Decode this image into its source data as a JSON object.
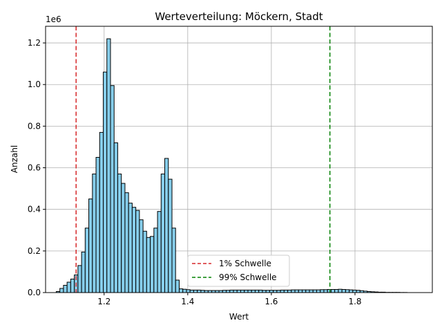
{
  "chart_data": {
    "type": "bar",
    "title": "Werteverteilung: Möckern, Stadt",
    "xlabel": "Wert",
    "ylabel": "Anzahl",
    "y_offset_label": "1e6",
    "xlim": [
      1.06,
      1.985
    ],
    "ylim": [
      0,
      1.28
    ],
    "x_ticks": [
      1.2,
      1.4,
      1.6,
      1.8
    ],
    "x_tick_labels": [
      "1.2",
      "1.4",
      "1.6",
      "1.8"
    ],
    "y_ticks": [
      0,
      0.2,
      0.4,
      0.6,
      0.8,
      1.0,
      1.2
    ],
    "y_tick_labels": [
      "0.0",
      "0.2",
      "0.4",
      "0.6",
      "0.8",
      "1.0",
      "1.2"
    ],
    "grid": true,
    "bar_color": "#87ceeb",
    "bar_edge_color": "#000000",
    "bin_start": 1.0855,
    "bin_width": 0.00865,
    "values_millions": [
      0.005,
      0.02,
      0.035,
      0.05,
      0.065,
      0.085,
      0.13,
      0.195,
      0.31,
      0.45,
      0.57,
      0.65,
      0.77,
      1.06,
      1.22,
      0.995,
      0.72,
      0.57,
      0.525,
      0.48,
      0.43,
      0.41,
      0.395,
      0.35,
      0.295,
      0.265,
      0.27,
      0.31,
      0.39,
      0.57,
      0.645,
      0.545,
      0.31,
      0.06,
      0.018,
      0.016,
      0.014,
      0.012,
      0.012,
      0.012,
      0.011,
      0.01,
      0.01,
      0.01,
      0.01,
      0.01,
      0.011,
      0.011,
      0.012,
      0.012,
      0.012,
      0.012,
      0.012,
      0.012,
      0.012,
      0.012,
      0.012,
      0.011,
      0.011,
      0.011,
      0.011,
      0.011,
      0.012,
      0.012,
      0.012,
      0.013,
      0.013,
      0.013,
      0.013,
      0.013,
      0.013,
      0.013,
      0.013,
      0.014,
      0.014,
      0.015,
      0.015,
      0.015,
      0.016,
      0.015,
      0.014,
      0.013,
      0.012,
      0.011,
      0.009,
      0.007,
      0.005,
      0.004,
      0.003,
      0.002,
      0.002,
      0.001,
      0.001,
      0.001,
      0.001,
      0.0005,
      0.0005
    ],
    "thresholds": [
      {
        "name": "1% Schwelle",
        "x": 1.133,
        "color": "#d62728"
      },
      {
        "name": "99% Schwelle",
        "x": 1.74,
        "color": "#008000"
      }
    ],
    "legend_position": "lower-center"
  }
}
